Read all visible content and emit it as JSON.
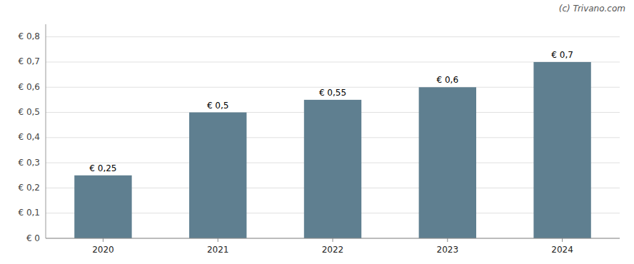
{
  "chart_data": {
    "type": "bar",
    "categories": [
      2020,
      2021,
      2022,
      2023,
      2024
    ],
    "values": [
      0.25,
      0.5,
      0.55,
      0.6,
      0.7
    ],
    "value_labels": [
      "€ 0,25",
      "€ 0,5",
      "€ 0,55",
      "€ 0,6",
      "€ 0,7"
    ],
    "data_labels": true,
    "color": "#5f7f90",
    "ylim": [
      0,
      0.85
    ],
    "yticks": [
      {
        "value": 0,
        "label": "€ 0"
      },
      {
        "value": 0.1,
        "label": "€ 0,1"
      },
      {
        "value": 0.2,
        "label": "€ 0,2"
      },
      {
        "value": 0.3,
        "label": "€ 0,3"
      },
      {
        "value": 0.4,
        "label": "€ 0,4"
      },
      {
        "value": 0.5,
        "label": "€ 0,5"
      },
      {
        "value": 0.6,
        "label": "€ 0,6"
      },
      {
        "value": 0.7,
        "label": "€ 0,7"
      },
      {
        "value": 0.8,
        "label": "€ 0,8"
      }
    ],
    "grid": true,
    "annotations": [
      "(c) Trivano.com"
    ]
  }
}
